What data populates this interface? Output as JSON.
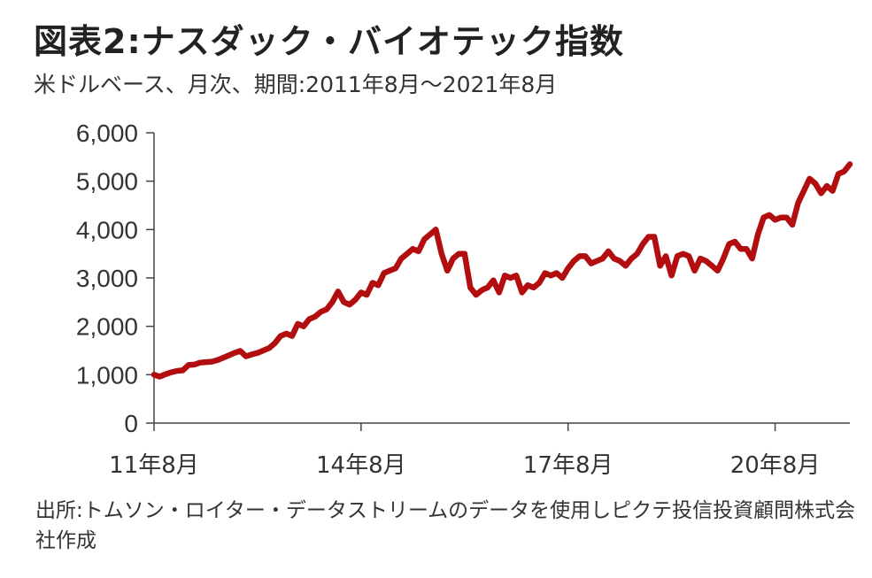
{
  "title": "図表2:ナスダック・バイオテック指数",
  "subtitle": "米ドルベース、月次、期間:2011年8月～2021年8月",
  "source": "出所:トムソン・ロイター・データストリームのデータを使用しピクテ投信投資顧問株式会社作成",
  "chart_data": {
    "type": "line",
    "title": "図表2:ナスダック・バイオテック指数",
    "xlabel": "",
    "ylabel": "",
    "ylim": [
      0,
      6000
    ],
    "yticks": [
      "0",
      "1,000",
      "2,000",
      "3,000",
      "4,000",
      "5,000",
      "6,000"
    ],
    "ytick_values": [
      0,
      1000,
      2000,
      3000,
      4000,
      5000,
      6000
    ],
    "xticks": [
      "11年8月",
      "14年8月",
      "17年8月",
      "20年8月"
    ],
    "xtick_index": [
      0,
      36,
      72,
      108
    ],
    "grid": false,
    "line_color": "#b20e10",
    "series": [
      {
        "values": [
          1000,
          960,
          1010,
          1050,
          1080,
          1090,
          1200,
          1210,
          1250,
          1260,
          1270,
          1300,
          1350,
          1400,
          1450,
          1490,
          1380,
          1420,
          1450,
          1500,
          1550,
          1650,
          1800,
          1850,
          1800,
          2050,
          2000,
          2150,
          2200,
          2300,
          2350,
          2500,
          2720,
          2500,
          2450,
          2550,
          2700,
          2650,
          2900,
          2850,
          3100,
          3150,
          3200,
          3400,
          3500,
          3600,
          3550,
          3800,
          3900,
          4000,
          3500,
          3150,
          3400,
          3500,
          3500,
          2800,
          2650,
          2750,
          2800,
          2950,
          2700,
          3050,
          3000,
          3050,
          2700,
          2850,
          2800,
          2900,
          3100,
          3050,
          3100,
          3000,
          3200,
          3350,
          3450,
          3450,
          3300,
          3350,
          3400,
          3550,
          3400,
          3350,
          3250,
          3400,
          3500,
          3700,
          3850,
          3850,
          3250,
          3450,
          3050,
          3450,
          3500,
          3450,
          3150,
          3400,
          3350,
          3250,
          3150,
          3400,
          3700,
          3750,
          3600,
          3600,
          3400,
          3900,
          4250,
          4300,
          4200,
          4250,
          4250,
          4100,
          4550,
          4800,
          5050,
          4950,
          4750,
          4900,
          4800,
          5150,
          5200,
          5350
        ]
      }
    ]
  }
}
